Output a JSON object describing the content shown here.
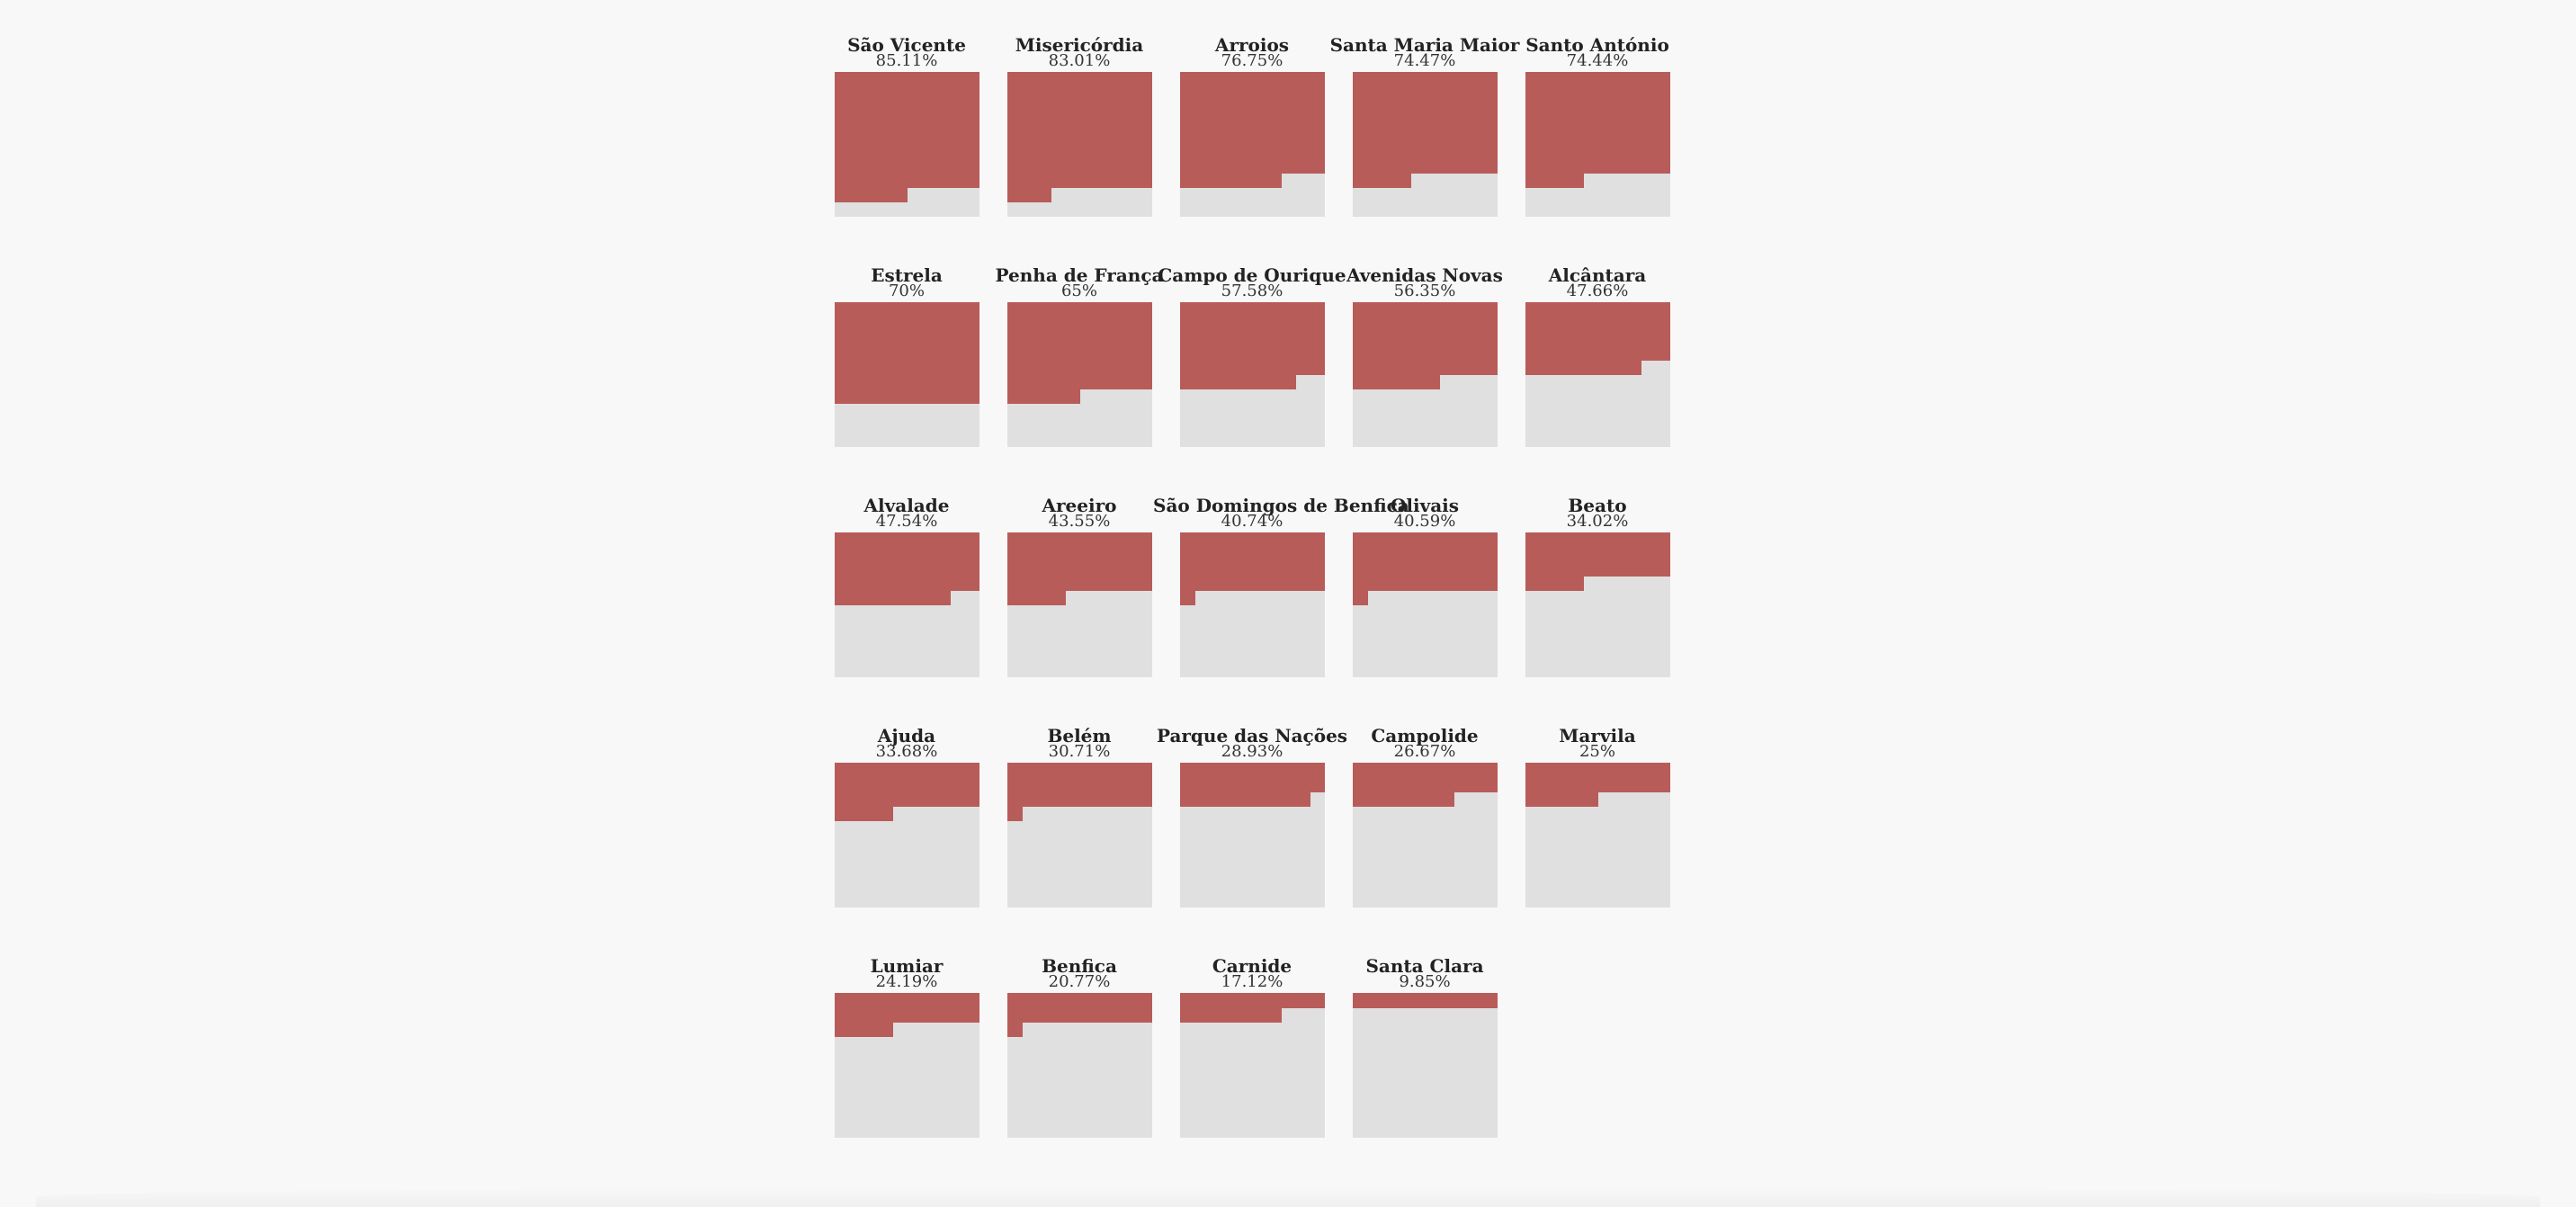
{
  "chart_data": {
    "type": "waffle",
    "colors": {
      "filled": "#b85c5a",
      "empty": "#e0e0e0",
      "background": "#f8f8f8"
    },
    "categories": [
      {
        "name": "São Vicente",
        "label": "85.11%",
        "value": 85.11
      },
      {
        "name": "Misericórdia",
        "label": "83.01%",
        "value": 83.01
      },
      {
        "name": "Arroios",
        "label": "76.75%",
        "value": 76.75
      },
      {
        "name": "Santa Maria Maior",
        "label": "74.47%",
        "value": 74.47
      },
      {
        "name": "Santo António",
        "label": "74.44%",
        "value": 74.44
      },
      {
        "name": "Estrela",
        "label": "70%",
        "value": 70
      },
      {
        "name": "Penha de França",
        "label": "65%",
        "value": 65
      },
      {
        "name": "Campo de Ourique",
        "label": "57.58%",
        "value": 57.58
      },
      {
        "name": "Avenidas Novas",
        "label": "56.35%",
        "value": 56.35
      },
      {
        "name": "Alcântara",
        "label": "47.66%",
        "value": 47.66
      },
      {
        "name": "Alvalade",
        "label": "47.54%",
        "value": 47.54
      },
      {
        "name": "Areeiro",
        "label": "43.55%",
        "value": 43.55
      },
      {
        "name": "São Domingos de Benfica",
        "label": "40.74%",
        "value": 40.74
      },
      {
        "name": "Olivais",
        "label": "40.59%",
        "value": 40.59
      },
      {
        "name": "Beato",
        "label": "34.02%",
        "value": 34.02
      },
      {
        "name": "Ajuda",
        "label": "33.68%",
        "value": 33.68
      },
      {
        "name": "Belém",
        "label": "30.71%",
        "value": 30.71
      },
      {
        "name": "Parque das Nações",
        "label": "28.93%",
        "value": 28.93
      },
      {
        "name": "Campolide",
        "label": "26.67%",
        "value": 26.67
      },
      {
        "name": "Marvila",
        "label": "25%",
        "value": 25
      },
      {
        "name": "Lumiar",
        "label": "24.19%",
        "value": 24.19
      },
      {
        "name": "Benfica",
        "label": "20.77%",
        "value": 20.77
      },
      {
        "name": "Carnide",
        "label": "17.12%",
        "value": 17.12
      },
      {
        "name": "Santa Clara",
        "label": "9.85%",
        "value": 9.85
      }
    ]
  }
}
